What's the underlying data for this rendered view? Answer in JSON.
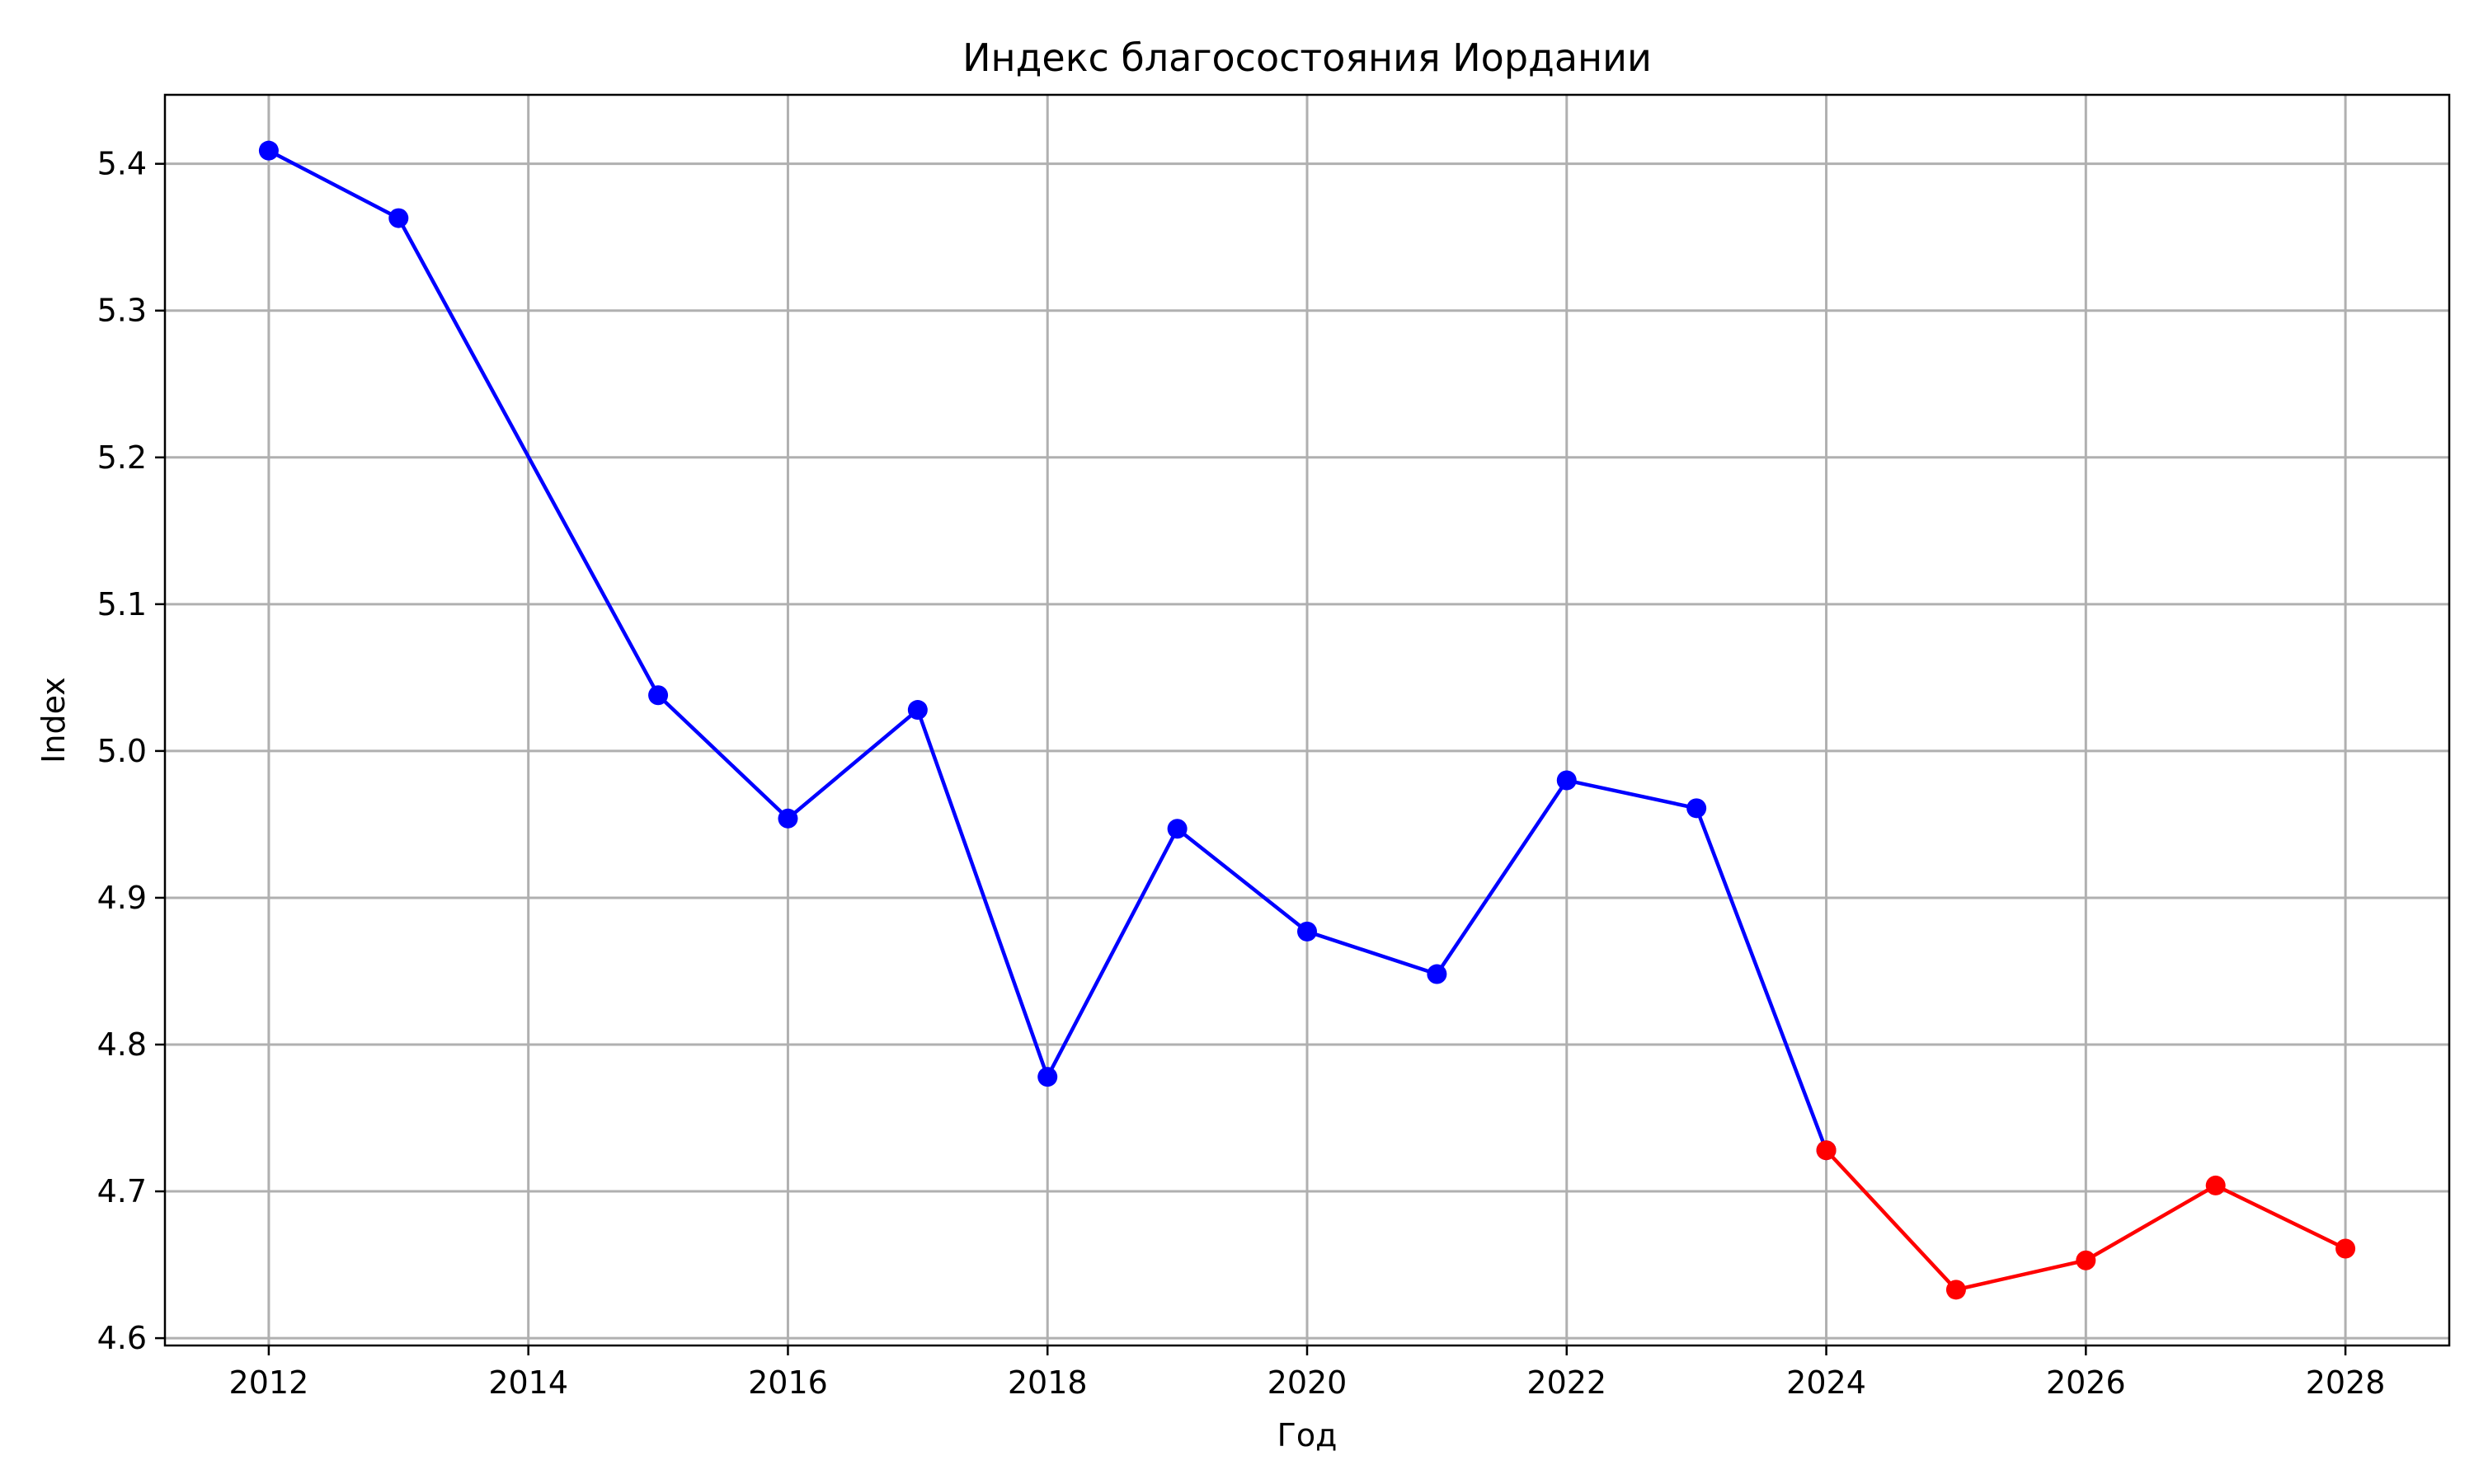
{
  "chart_data": {
    "type": "line",
    "title": "Индекс благосостояния Иордании",
    "xlabel": "Год",
    "ylabel": "Index",
    "xlim": [
      2011.2,
      2028.8
    ],
    "ylim": [
      4.595,
      5.447
    ],
    "x_ticks": [
      2012,
      2014,
      2016,
      2018,
      2020,
      2022,
      2024,
      2026,
      2028
    ],
    "x_tick_labels": [
      "2012",
      "2014",
      "2016",
      "2018",
      "2020",
      "2022",
      "2024",
      "2026",
      "2028"
    ],
    "y_ticks": [
      4.6,
      4.7,
      4.8,
      4.9,
      5.0,
      5.1,
      5.2,
      5.3,
      5.4
    ],
    "y_tick_labels": [
      "4.6",
      "4.7",
      "4.8",
      "4.9",
      "5.0",
      "5.1",
      "5.2",
      "5.3",
      "5.4"
    ],
    "grid": true,
    "legend": "none",
    "series": [
      {
        "color": "#0000ff",
        "marker": "circle",
        "x": [
          2012,
          2013,
          2015,
          2016,
          2017,
          2018,
          2019,
          2020,
          2021,
          2022,
          2023,
          2024
        ],
        "y": [
          5.409,
          5.363,
          5.038,
          4.954,
          5.028,
          4.778,
          4.947,
          4.877,
          4.848,
          4.98,
          4.961,
          4.728
        ]
      },
      {
        "color": "#ff0000",
        "marker": "circle",
        "x": [
          2024,
          2025,
          2026,
          2027,
          2028
        ],
        "y": [
          4.728,
          4.633,
          4.653,
          4.704,
          4.661
        ]
      }
    ]
  }
}
